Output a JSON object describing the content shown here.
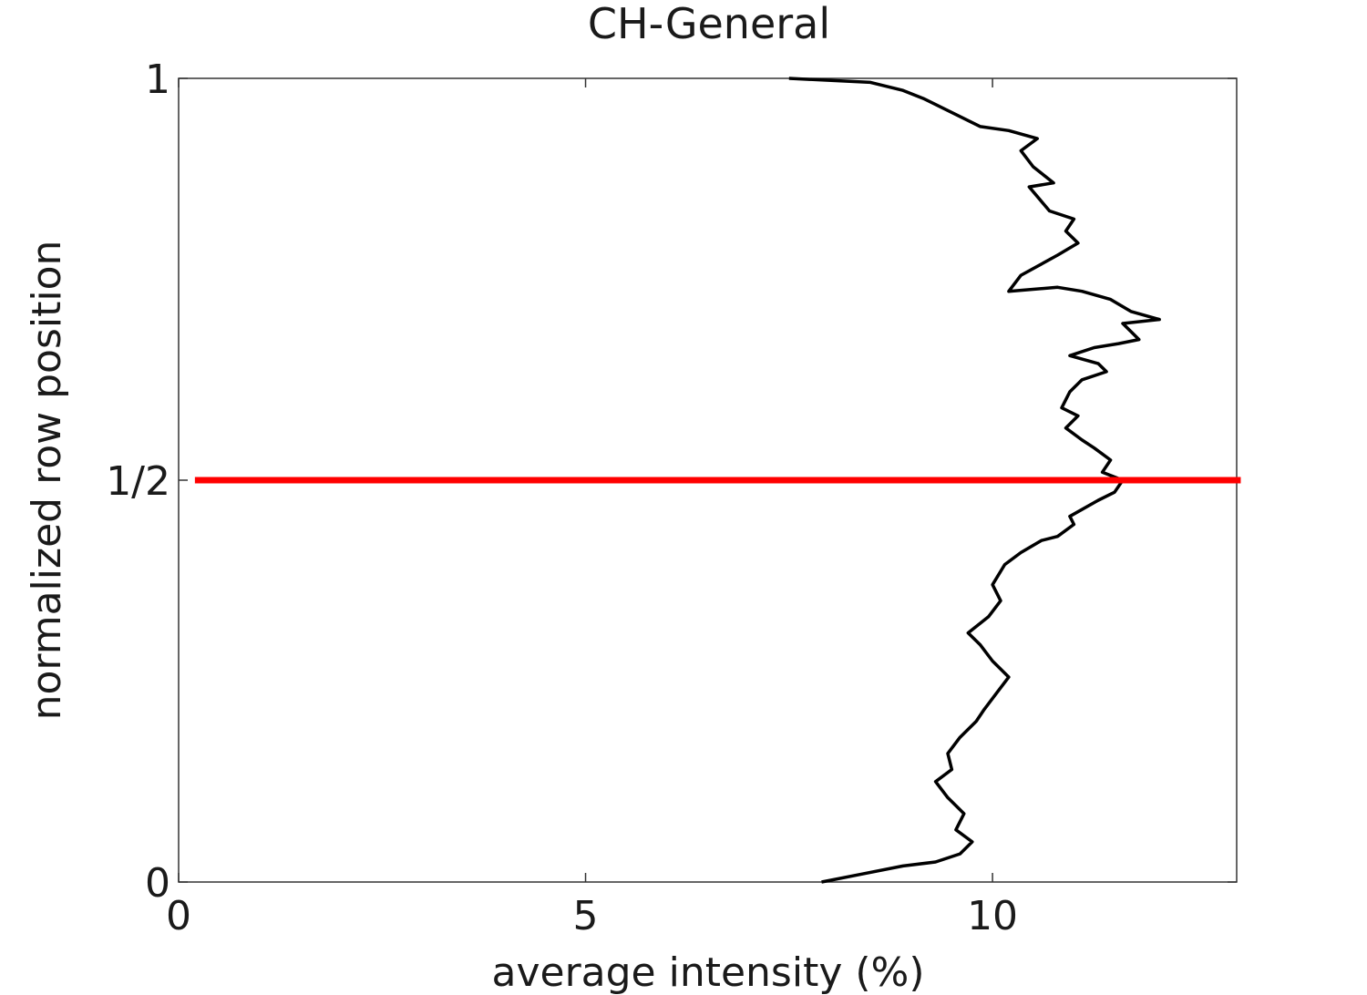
{
  "chart_data": {
    "type": "line",
    "title": "CH-General",
    "xlabel": "average intensity (%)",
    "ylabel": "normalized row position",
    "xlim": [
      0,
      13
    ],
    "ylim": [
      0,
      1
    ],
    "x_ticks": [
      {
        "value": 0,
        "label": "0"
      },
      {
        "value": 5,
        "label": "5"
      },
      {
        "value": 10,
        "label": "10"
      }
    ],
    "y_ticks": [
      {
        "value": 0,
        "label": "0"
      },
      {
        "value": 0.5,
        "label": "1/2"
      },
      {
        "value": 1,
        "label": "1"
      }
    ],
    "grid": false,
    "series": [
      {
        "color": "#000000",
        "x": [
          7.9,
          8.4,
          8.9,
          9.3,
          9.6,
          9.75,
          9.55,
          9.65,
          9.45,
          9.3,
          9.5,
          9.45,
          9.6,
          9.8,
          9.9,
          10.05,
          10.2,
          10.0,
          9.85,
          9.7,
          9.95,
          10.1,
          10.0,
          10.15,
          10.35,
          10.6,
          10.8,
          11.0,
          10.95,
          11.3,
          11.5,
          11.6,
          11.35,
          11.45,
          11.25,
          11.1,
          10.9,
          11.05,
          10.85,
          10.95,
          11.1,
          11.4,
          11.3,
          10.95,
          11.25,
          11.55,
          11.8,
          11.6,
          12.05,
          11.7,
          11.45,
          11.1,
          10.8,
          10.2,
          10.35,
          10.8,
          11.05,
          10.9,
          11.0,
          10.7,
          10.45,
          10.75,
          10.5,
          10.35,
          10.55,
          10.2,
          9.85,
          9.55,
          9.15,
          8.9,
          8.5,
          7.5
        ],
        "y": [
          0.0,
          0.01,
          0.02,
          0.025,
          0.035,
          0.05,
          0.065,
          0.085,
          0.105,
          0.125,
          0.14,
          0.16,
          0.18,
          0.2,
          0.215,
          0.235,
          0.255,
          0.275,
          0.295,
          0.31,
          0.33,
          0.35,
          0.37,
          0.395,
          0.41,
          0.425,
          0.43,
          0.445,
          0.455,
          0.475,
          0.485,
          0.5,
          0.51,
          0.525,
          0.54,
          0.55,
          0.565,
          0.58,
          0.59,
          0.61,
          0.625,
          0.635,
          0.645,
          0.655,
          0.665,
          0.67,
          0.675,
          0.695,
          0.7,
          0.71,
          0.725,
          0.735,
          0.74,
          0.735,
          0.755,
          0.78,
          0.795,
          0.81,
          0.825,
          0.835,
          0.865,
          0.87,
          0.89,
          0.91,
          0.925,
          0.935,
          0.94,
          0.955,
          0.975,
          0.985,
          0.995,
          1.0
        ]
      }
    ],
    "reference_line": {
      "y": 0.5,
      "x_start": 0.2,
      "x_end": 13.05,
      "color": "#ff0000"
    }
  }
}
